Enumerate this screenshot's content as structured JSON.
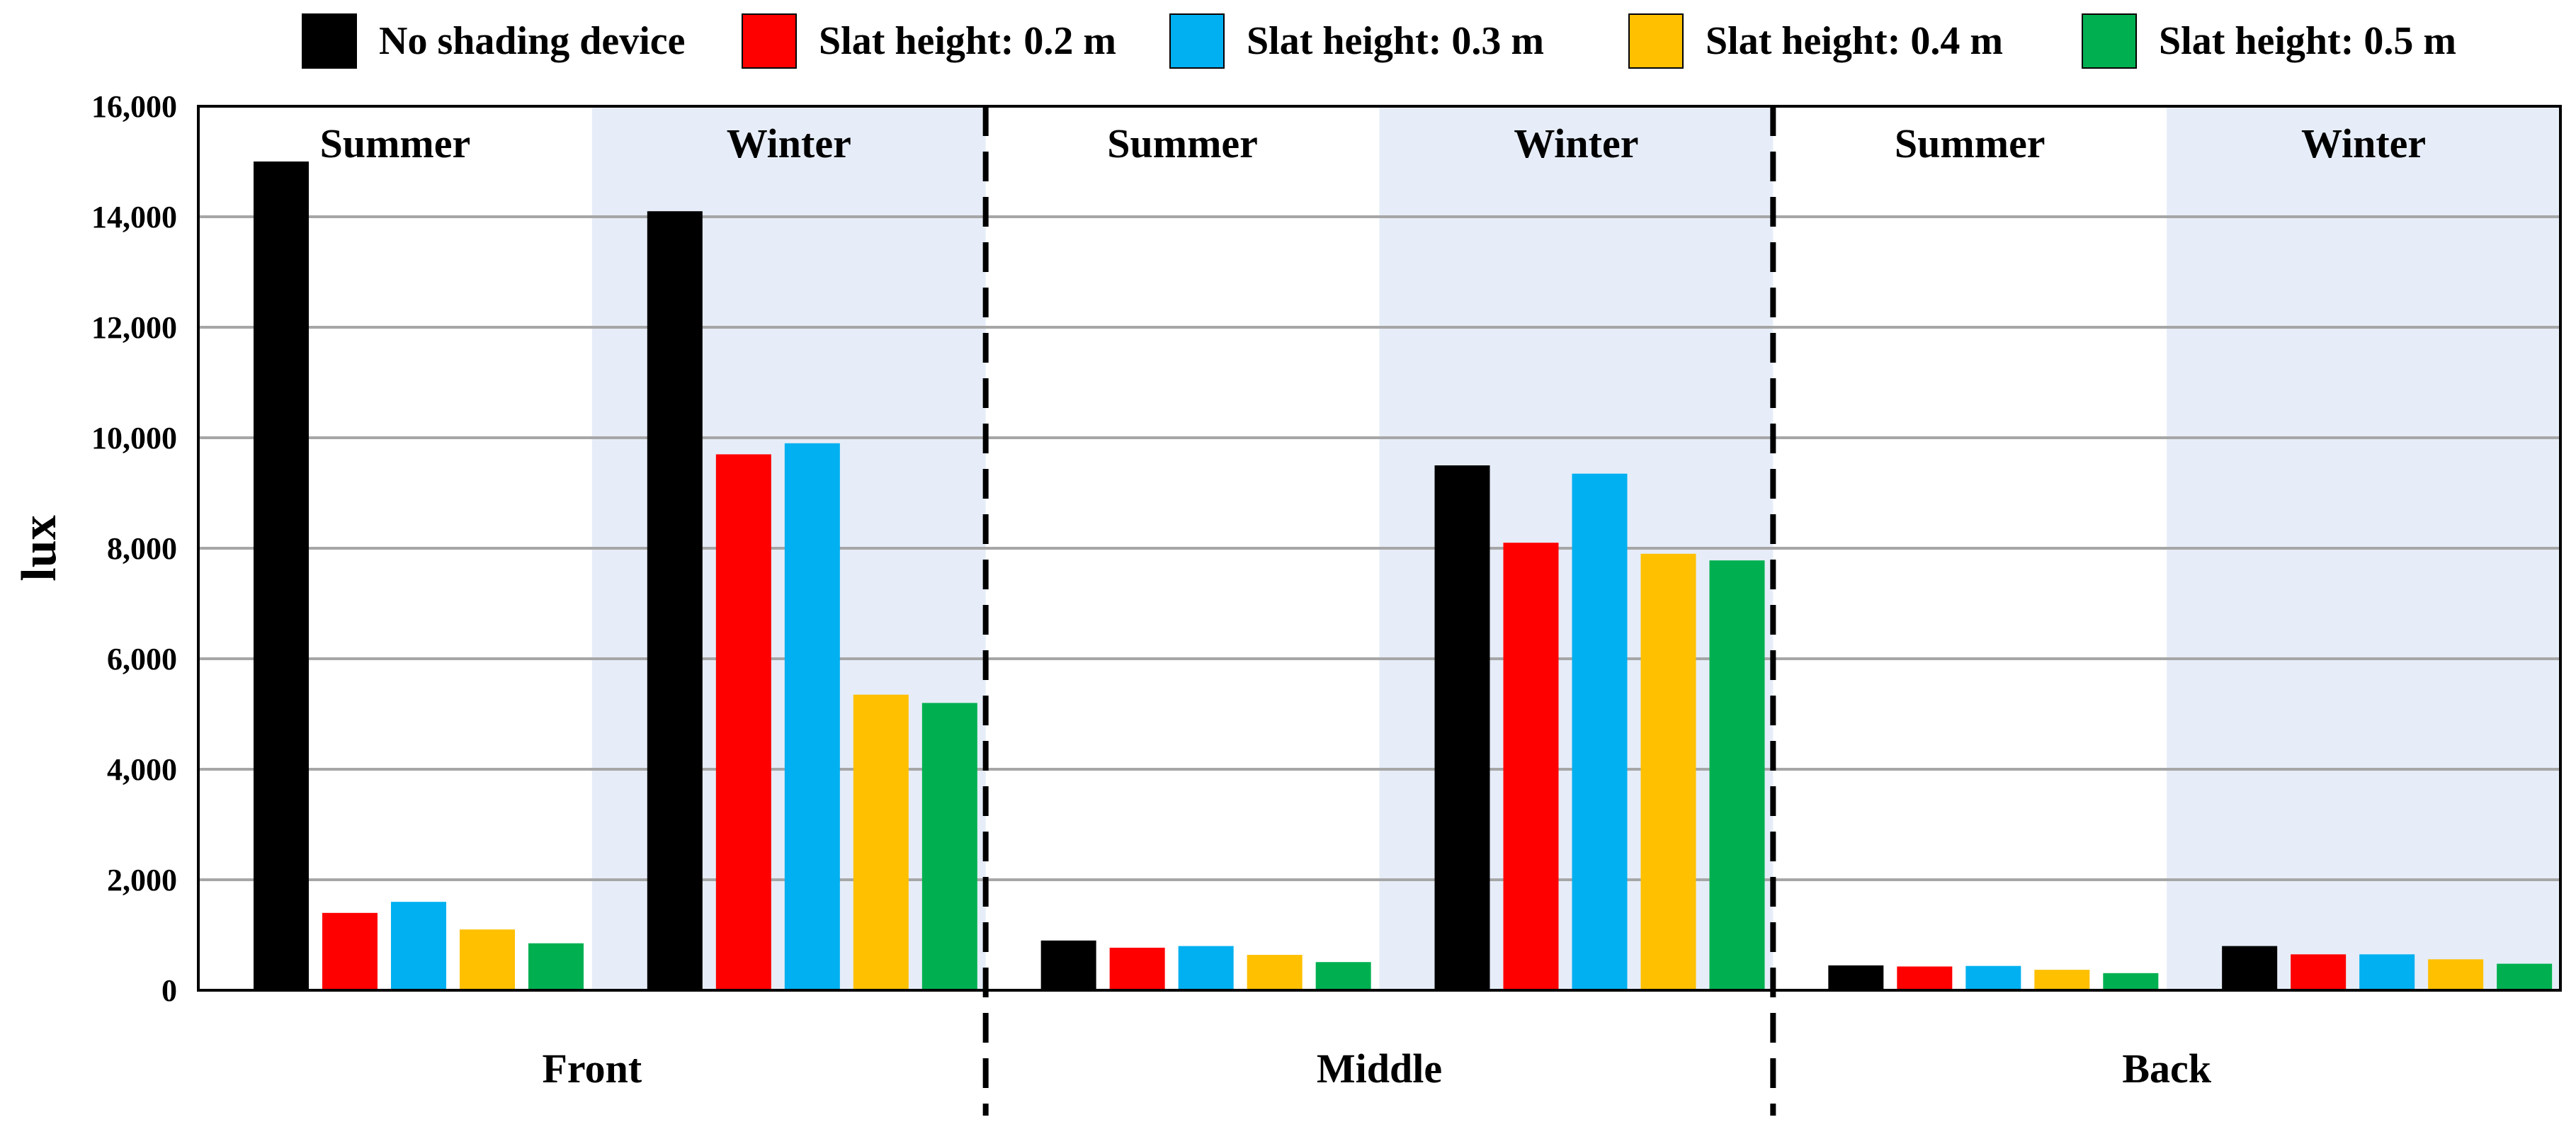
{
  "chart_data": {
    "type": "bar",
    "ylabel": "lux",
    "ylim": [
      0,
      16000
    ],
    "yticks": [
      0,
      2000,
      4000,
      6000,
      8000,
      10000,
      12000,
      14000,
      16000
    ],
    "ytick_labels": [
      "0",
      "2,000",
      "4,000",
      "6,000",
      "8,000",
      "10,000",
      "12,000",
      "14,000",
      "16,000"
    ],
    "grid": true,
    "legend_position": "top",
    "groups": [
      "Front",
      "Middle",
      "Back"
    ],
    "seasons": [
      "Summer",
      "Winter"
    ],
    "series": [
      {
        "name": "No shading device",
        "color": "#000000",
        "values": [
          [
            15000,
            14100
          ],
          [
            900,
            9500
          ],
          [
            450,
            800
          ]
        ]
      },
      {
        "name": "Slat height: 0.2 m",
        "color": "#ff0000",
        "values": [
          [
            1400,
            9700
          ],
          [
            770,
            8100
          ],
          [
            430,
            650
          ]
        ]
      },
      {
        "name": "Slat height: 0.3 m",
        "color": "#00b0f0",
        "values": [
          [
            1600,
            9900
          ],
          [
            800,
            9350
          ],
          [
            440,
            650
          ]
        ]
      },
      {
        "name": "Slat height: 0.4 m",
        "color": "#ffc000",
        "values": [
          [
            1100,
            5350
          ],
          [
            640,
            7900
          ],
          [
            370,
            560
          ]
        ]
      },
      {
        "name": "Slat height: 0.5 m",
        "color": "#00b050",
        "values": [
          [
            850,
            5200
          ],
          [
            510,
            7780
          ],
          [
            310,
            480
          ]
        ]
      }
    ],
    "winter_background_color": "#e6edf8"
  }
}
